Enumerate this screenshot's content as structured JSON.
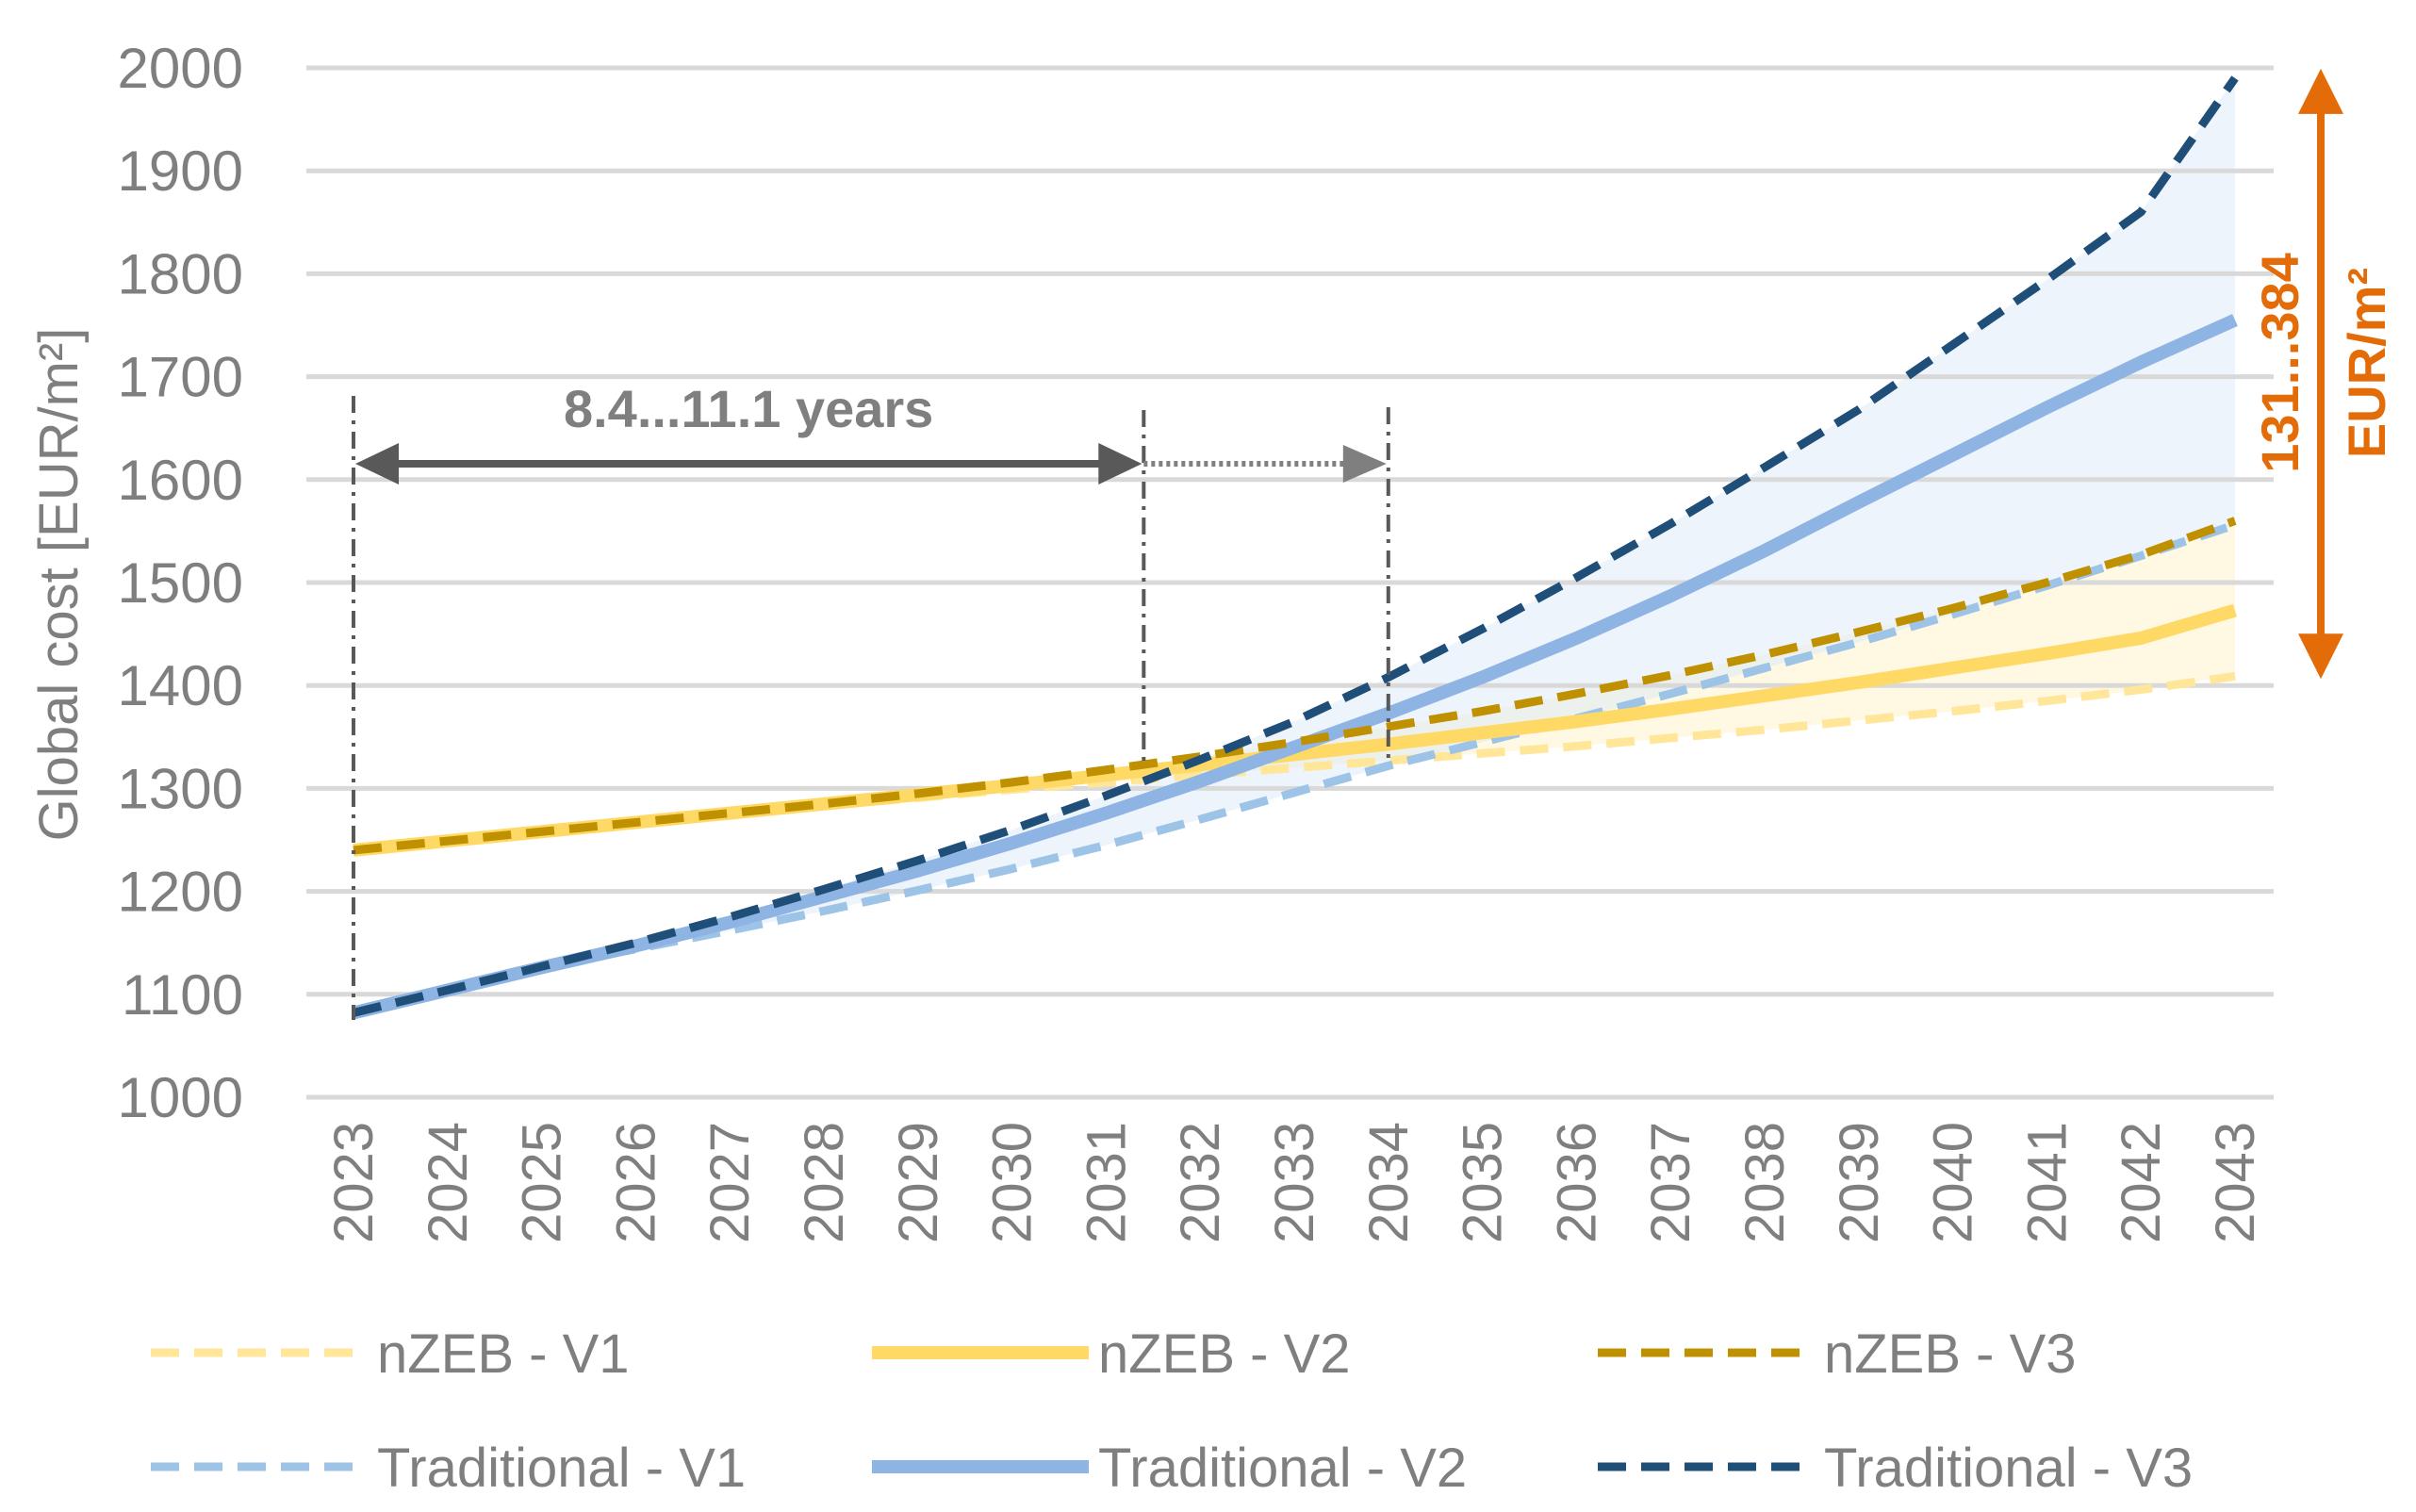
{
  "chart_data": {
    "type": "line",
    "ylabel": "Global cost [EUR/m²]",
    "ylim": [
      1000,
      2000
    ],
    "yticks": [
      "1000",
      "1100",
      "1200",
      "1300",
      "1400",
      "1500",
      "1600",
      "1700",
      "1800",
      "1900",
      "2000"
    ],
    "x": [
      "2023",
      "2024",
      "2025",
      "2026",
      "2027",
      "2028",
      "2029",
      "2030",
      "2031",
      "2032",
      "2033",
      "2034",
      "2035",
      "2036",
      "2037",
      "2038",
      "2039",
      "2040",
      "2041",
      "2042",
      "2043"
    ],
    "grid": true,
    "legend_position": "bottom",
    "series": [
      {
        "name": "nZEB - V1",
        "color": "#FFE699",
        "style": "dashed",
        "values": [
          1240,
          1249,
          1258,
          1267,
          1275,
          1283,
          1291,
          1299,
          1306,
          1313,
          1320,
          1327,
          1334,
          1341,
          1349,
          1357,
          1366,
          1375,
          1385,
          1396,
          1409
        ]
      },
      {
        "name": "nZEB - V2",
        "color": "#FFD966",
        "style": "solid",
        "values": [
          1240,
          1249,
          1258,
          1267,
          1276,
          1285,
          1294,
          1303,
          1313,
          1323,
          1333,
          1343,
          1354,
          1365,
          1377,
          1390,
          1403,
          1417,
          1431,
          1446,
          1473
        ]
      },
      {
        "name": "nZEB - V3",
        "color": "#BF9000",
        "style": "dashed",
        "values": [
          1240,
          1249,
          1258,
          1267,
          1276,
          1285,
          1295,
          1306,
          1318,
          1331,
          1345,
          1360,
          1375,
          1392,
          1410,
          1430,
          1452,
          1475,
          1500,
          1527,
          1560
        ]
      },
      {
        "name": "Traditional - V1",
        "color": "#9DC3E6",
        "style": "dashed",
        "values": [
          1082,
          1104,
          1126,
          1144,
          1162,
          1181,
          1201,
          1222,
          1245,
          1270,
          1296,
          1322,
          1345,
          1368,
          1392,
          1417,
          1442,
          1469,
          1497,
          1526,
          1556
        ]
      },
      {
        "name": "Traditional - V2",
        "color": "#8EB4E3",
        "style": "solid",
        "values": [
          1082,
          1104,
          1126,
          1147,
          1170,
          1195,
          1220,
          1247,
          1276,
          1307,
          1340,
          1373,
          1408,
          1446,
          1487,
          1531,
          1578,
          1624,
          1670,
          1714,
          1755
        ]
      },
      {
        "name": "Traditional - V3",
        "color": "#1F4E79",
        "style": "dashed",
        "values": [
          1082,
          1104,
          1127,
          1150,
          1175,
          1202,
          1230,
          1260,
          1293,
          1328,
          1365,
          1408,
          1455,
          1505,
          1557,
          1612,
          1668,
          1731,
          1794,
          1860,
          1990
        ]
      }
    ],
    "annotations": {
      "payback_label": "8.4...11.1 years",
      "payback_start": 2023,
      "payback_min": 2031.4,
      "payback_max": 2034,
      "range_label_value": "131...384",
      "range_label_unit": "EUR/m²",
      "range_top": 1990,
      "range_bottom": 1410,
      "range_color": "#E36C09"
    }
  }
}
